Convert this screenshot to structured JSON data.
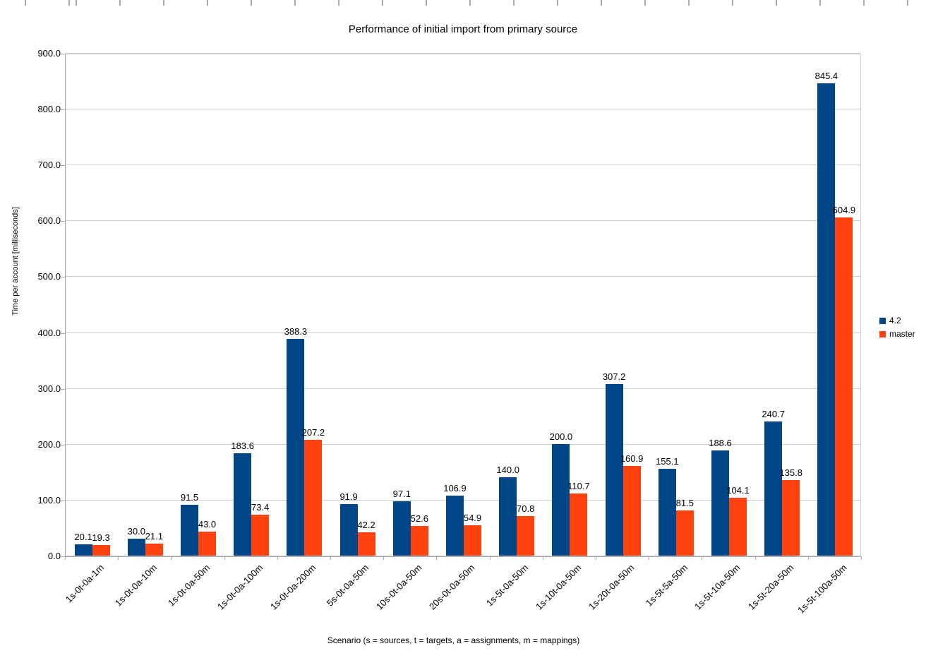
{
  "chart_data": {
    "type": "bar",
    "title": "Performance of initial import from primary source",
    "xlabel": "Scenario (s = sources, t = targets, a = assignments, m = mappings)",
    "ylabel": "Time per account [milliseconds]",
    "ylim": [
      0,
      900
    ],
    "ytick_step": 100,
    "grid": true,
    "data_labels": true,
    "legend_position": "right",
    "categories": [
      "1s-0t-0a-1m",
      "1s-0t-0a-10m",
      "1s-0t-0a-50m",
      "1s-0t-0a-100m",
      "1s-0t-0a-200m",
      "5s-0t-0a-50m",
      "10s-0t-0a-50m",
      "20s-0t-0a-50m",
      "1s-5t-0a-50m",
      "1s-10t-0a-50m",
      "1s-20t-0a-50m",
      "1s-5t-5a-50m",
      "1s-5t-10a-50m",
      "1s-5t-20a-50m",
      "1s-5t-100a-50m"
    ],
    "series": [
      {
        "name": "4.2",
        "color": "#004586",
        "values": [
          20.1,
          30.0,
          91.5,
          183.6,
          388.3,
          91.9,
          97.1,
          106.9,
          140.0,
          200.0,
          307.2,
          155.1,
          188.6,
          240.7,
          845.4
        ]
      },
      {
        "name": "master",
        "color": "#FF420E",
        "values": [
          19.3,
          21.1,
          43.0,
          73.4,
          207.2,
          42.2,
          52.6,
          54.9,
          70.8,
          110.7,
          160.9,
          81.5,
          104.1,
          135.8,
          604.9
        ]
      }
    ]
  }
}
